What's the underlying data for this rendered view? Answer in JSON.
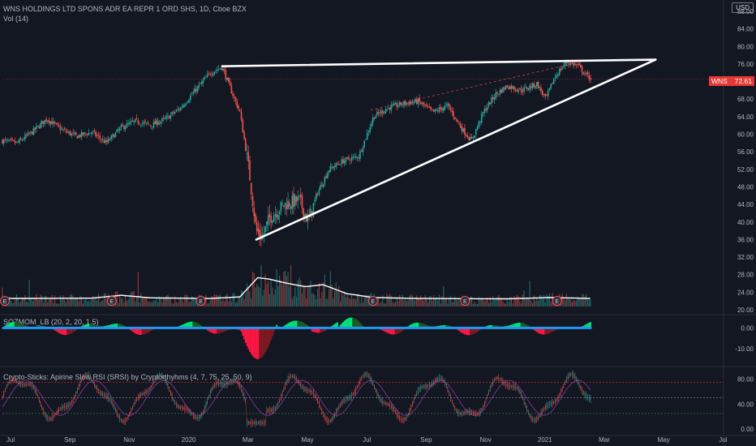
{
  "header": {
    "title": "WNS HOLDINGS LTD SPONS ADR EA REPR 1 ORD SHS, 1D, Cboe BZX",
    "volume_label": "Vol (14)",
    "currency": "USD",
    "squeeze_label": "SQZMOM_LB (20, 2, 20, 1.5)",
    "srsi_label": "Crypto-Sticks: Apirine Slow RSI (SRSI) by Cryptorthyhms (4, 7, 75, 25, 50, 9)"
  },
  "price_tag": {
    "symbol": "WNS",
    "price": "72.61",
    "color": "#e53935"
  },
  "colors": {
    "background": "#131722",
    "up": "#26a69a",
    "down": "#ef5350",
    "trendline": "#ffffff",
    "squeeze_up_strong": "#00e676",
    "squeeze_up_weak": "#1b5e20",
    "squeeze_down_strong": "#ff1744",
    "squeeze_down_weak": "#801922",
    "squeeze_zero_line": "#2196f3",
    "rsi_upper": "#c62828",
    "rsi_lower": "#2e7d32",
    "earnings_marker": "#ef5350"
  },
  "earnings_marker_label": "E",
  "chart_data": [
    {
      "type": "candlestick",
      "panel": "price",
      "title": "WNS HOLDINGS LTD SPONS ADR EA REPR 1 ORD SHS, 1D, Cboe BZX",
      "xlabel": "",
      "ylabel": "",
      "ylim": [
        20,
        88
      ],
      "y_ticks": [
        "88.00",
        "84.00",
        "80.00",
        "76.00",
        "72.00",
        "68.00",
        "64.00",
        "60.00",
        "56.00",
        "52.00",
        "48.00",
        "44.00",
        "40.00",
        "36.00",
        "32.00",
        "28.00",
        "24.00",
        "20.00"
      ],
      "x_ticks": [
        "Jul",
        "Sep",
        "Nov",
        "2020",
        "Mar",
        "May",
        "Jul",
        "Sep",
        "Nov",
        "2021",
        "Mar",
        "May",
        "Jul"
      ],
      "last_price": 72.61,
      "close_path": [
        {
          "m": 0.0,
          "v": 58.5
        },
        {
          "m": 0.5,
          "v": 58.0
        },
        {
          "m": 1.0,
          "v": 60.5
        },
        {
          "m": 1.5,
          "v": 63.5
        },
        {
          "m": 2.0,
          "v": 61.0
        },
        {
          "m": 2.5,
          "v": 59.5
        },
        {
          "m": 3.0,
          "v": 60.5
        },
        {
          "m": 3.5,
          "v": 58.0
        },
        {
          "m": 4.0,
          "v": 61.5
        },
        {
          "m": 4.5,
          "v": 63.0
        },
        {
          "m": 5.0,
          "v": 62.0
        },
        {
          "m": 5.5,
          "v": 63.5
        },
        {
          "m": 6.0,
          "v": 66.0
        },
        {
          "m": 6.5,
          "v": 70.0
        },
        {
          "m": 7.0,
          "v": 74.0
        },
        {
          "m": 7.4,
          "v": 75.3
        },
        {
          "m": 7.7,
          "v": 70.0
        },
        {
          "m": 8.0,
          "v": 65.0
        },
        {
          "m": 8.3,
          "v": 52.0
        },
        {
          "m": 8.55,
          "v": 38.0
        },
        {
          "m": 8.75,
          "v": 36.5
        },
        {
          "m": 9.0,
          "v": 41.0
        },
        {
          "m": 9.5,
          "v": 44.0
        },
        {
          "m": 10.0,
          "v": 45.0
        },
        {
          "m": 10.3,
          "v": 40.0
        },
        {
          "m": 10.6,
          "v": 46.5
        },
        {
          "m": 11.0,
          "v": 52.0
        },
        {
          "m": 11.5,
          "v": 54.0
        },
        {
          "m": 12.0,
          "v": 55.0
        },
        {
          "m": 12.5,
          "v": 64.0
        },
        {
          "m": 13.0,
          "v": 66.0
        },
        {
          "m": 13.5,
          "v": 67.0
        },
        {
          "m": 14.0,
          "v": 67.5
        },
        {
          "m": 14.5,
          "v": 65.0
        },
        {
          "m": 15.0,
          "v": 66.5
        },
        {
          "m": 15.5,
          "v": 61.0
        },
        {
          "m": 15.8,
          "v": 58.5
        },
        {
          "m": 16.2,
          "v": 65.0
        },
        {
          "m": 16.6,
          "v": 69.0
        },
        {
          "m": 17.0,
          "v": 71.0
        },
        {
          "m": 17.5,
          "v": 70.0
        },
        {
          "m": 18.0,
          "v": 71.5
        },
        {
          "m": 18.3,
          "v": 68.0
        },
        {
          "m": 18.6,
          "v": 73.0
        },
        {
          "m": 19.0,
          "v": 76.5
        },
        {
          "m": 19.4,
          "v": 75.5
        },
        {
          "m": 19.65,
          "v": 73.5
        },
        {
          "m": 19.85,
          "v": 72.61
        }
      ],
      "annotations": [
        {
          "kind": "trendline",
          "from": {
            "m": 7.4,
            "v": 75.5
          },
          "to": {
            "m": 22.0,
            "v": 77.0
          }
        },
        {
          "kind": "trendline",
          "from": {
            "m": 8.55,
            "v": 36.0
          },
          "to": {
            "m": 22.0,
            "v": 77.0
          }
        },
        {
          "kind": "dashed",
          "from": {
            "m": 12.4,
            "v": 65.5
          },
          "to": {
            "m": 19.5,
            "v": 76.5
          }
        }
      ]
    },
    {
      "type": "bar",
      "panel": "volume",
      "series": [
        {
          "name": "Vol (14)"
        }
      ],
      "earnings_months": [
        0.0,
        3.6,
        6.6,
        12.4,
        15.5,
        18.6
      ],
      "moving_average_path": [
        {
          "m": 0,
          "v": 0.25
        },
        {
          "m": 3,
          "v": 0.26
        },
        {
          "m": 4,
          "v": 0.35
        },
        {
          "m": 5,
          "v": 0.27
        },
        {
          "m": 7,
          "v": 0.25
        },
        {
          "m": 8,
          "v": 0.3
        },
        {
          "m": 8.6,
          "v": 0.9
        },
        {
          "m": 9,
          "v": 0.85
        },
        {
          "m": 9.6,
          "v": 0.72
        },
        {
          "m": 10.2,
          "v": 0.62
        },
        {
          "m": 10.8,
          "v": 0.68
        },
        {
          "m": 11.6,
          "v": 0.4
        },
        {
          "m": 12.5,
          "v": 0.28
        },
        {
          "m": 14,
          "v": 0.25
        },
        {
          "m": 17,
          "v": 0.24
        },
        {
          "m": 18.5,
          "v": 0.28
        },
        {
          "m": 19.85,
          "v": 0.25
        }
      ]
    },
    {
      "type": "bar",
      "panel": "squeeze momentum",
      "series": [
        {
          "name": "SQZMOM_LB (20, 2, 20, 1.5)"
        }
      ],
      "y_ticks": [
        "0.00",
        "-10.00"
      ],
      "ylim": [
        -17,
        6
      ]
    },
    {
      "type": "line",
      "panel": "slow rsi",
      "series": [
        {
          "name": "Crypto-Sticks: Apirine Slow RSI (SRSI) by Cryptorthyhms (4, 7, 75, 25, 50, 9)"
        }
      ],
      "y_ticks": [
        "80.00",
        "40.00",
        "0.00"
      ],
      "ylim": [
        -5,
        95
      ],
      "levels": [
        75,
        50,
        25
      ]
    }
  ]
}
